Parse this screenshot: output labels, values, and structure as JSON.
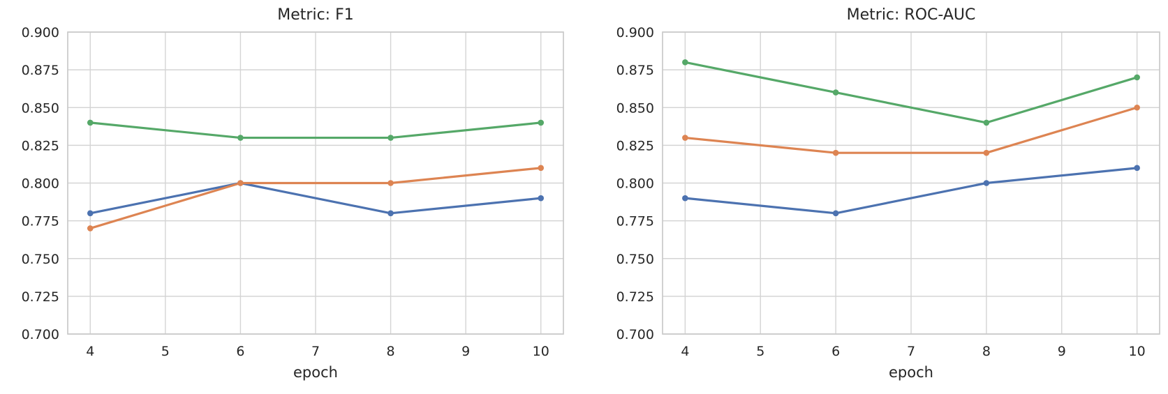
{
  "figure": {
    "background": "#ffffff",
    "text_color": "#262626",
    "grid_color": "#d4d4d4",
    "axes_border_color": "#c9c9c9"
  },
  "palette": {
    "blue": "#4C72B0",
    "orange": "#DD8452",
    "green": "#55A868"
  },
  "chart_data": [
    {
      "type": "line",
      "title": "Metric: F1",
      "xlabel": "epoch",
      "ylabel": "",
      "x": [
        4,
        6,
        8,
        10
      ],
      "xticks": [
        4,
        5,
        6,
        7,
        8,
        9,
        10
      ],
      "yticks": [
        0.9,
        0.875,
        0.85,
        0.825,
        0.8,
        0.775,
        0.75,
        0.725,
        0.7
      ],
      "ytick_labels": [
        "0.900",
        "0.875",
        "0.850",
        "0.825",
        "0.800",
        "0.775",
        "0.750",
        "0.725",
        "0.700"
      ],
      "xlim": [
        3.7,
        10.3
      ],
      "ylim": [
        0.7,
        0.9
      ],
      "grid": true,
      "legend_position": "none",
      "series": [
        {
          "name": "series-blue",
          "color": "#4C72B0",
          "values": [
            0.78,
            0.8,
            0.78,
            0.79
          ]
        },
        {
          "name": "series-orange",
          "color": "#DD8452",
          "values": [
            0.77,
            0.8,
            0.8,
            0.81
          ]
        },
        {
          "name": "series-green",
          "color": "#55A868",
          "values": [
            0.84,
            0.83,
            0.83,
            0.84
          ]
        }
      ]
    },
    {
      "type": "line",
      "title": "Metric: ROC-AUC",
      "xlabel": "epoch",
      "ylabel": "",
      "x": [
        4,
        6,
        8,
        10
      ],
      "xticks": [
        4,
        5,
        6,
        7,
        8,
        9,
        10
      ],
      "yticks": [
        0.9,
        0.875,
        0.85,
        0.825,
        0.8,
        0.775,
        0.75,
        0.725,
        0.7
      ],
      "ytick_labels": [
        "0.900",
        "0.875",
        "0.850",
        "0.825",
        "0.800",
        "0.775",
        "0.750",
        "0.725",
        "0.700"
      ],
      "xlim": [
        3.7,
        10.3
      ],
      "ylim": [
        0.7,
        0.9
      ],
      "grid": true,
      "legend_position": "none",
      "series": [
        {
          "name": "series-blue",
          "color": "#4C72B0",
          "values": [
            0.79,
            0.78,
            0.8,
            0.81
          ]
        },
        {
          "name": "series-orange",
          "color": "#DD8452",
          "values": [
            0.83,
            0.82,
            0.82,
            0.85
          ]
        },
        {
          "name": "series-green",
          "color": "#55A868",
          "values": [
            0.88,
            0.86,
            0.84,
            0.87
          ]
        }
      ]
    }
  ]
}
